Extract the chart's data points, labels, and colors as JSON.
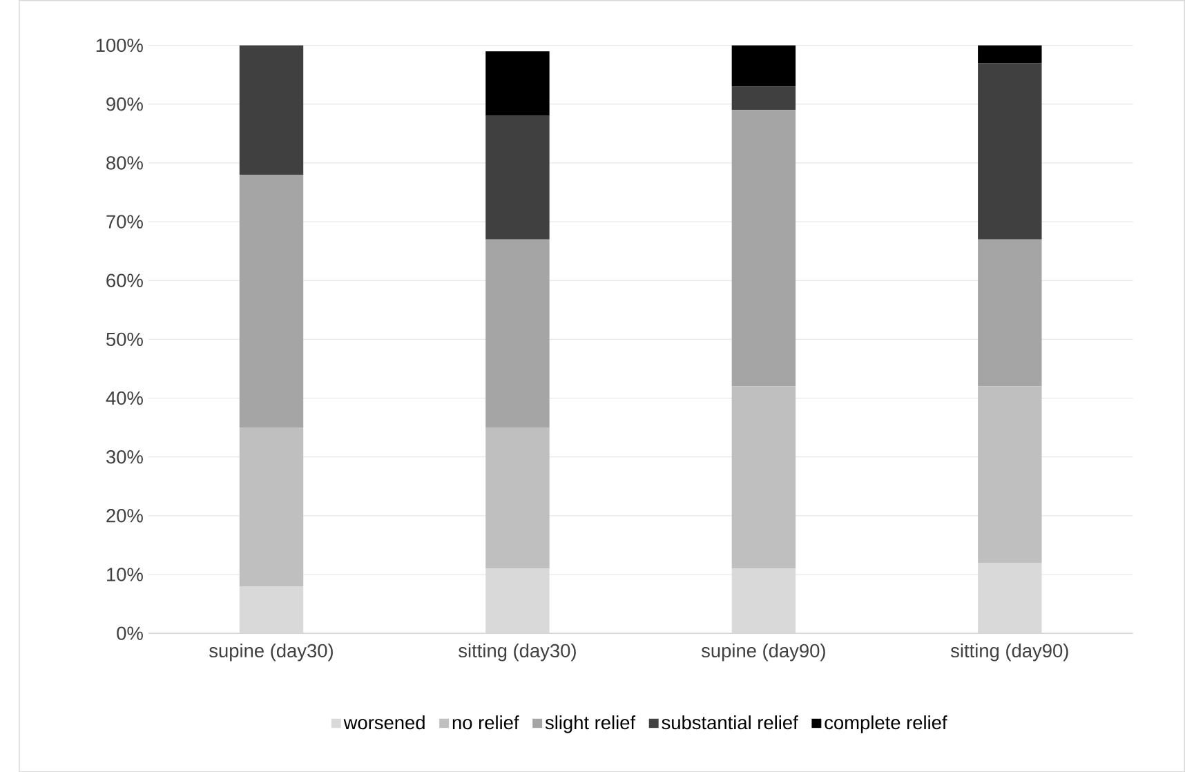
{
  "chart_data": {
    "type": "bar",
    "stacked": true,
    "categories": [
      "supine (day30)",
      "sitting (day30)",
      "supine (day90)",
      "sitting (day90)"
    ],
    "series": [
      {
        "name": "worsened",
        "color": "#d9d9d9",
        "values": [
          8,
          11,
          11,
          12
        ]
      },
      {
        "name": "no relief",
        "color": "#bfbfbf",
        "values": [
          27,
          24,
          31,
          30
        ]
      },
      {
        "name": "slight relief",
        "color": "#a5a5a5",
        "values": [
          43,
          32,
          47,
          25
        ]
      },
      {
        "name": "substantial relief",
        "color": "#404040",
        "values": [
          22,
          21,
          4,
          30
        ]
      },
      {
        "name": "complete relief",
        "color": "#000000",
        "values": [
          0,
          11,
          7,
          3
        ]
      }
    ],
    "ylim": [
      0,
      100
    ],
    "yticks": [
      {
        "value": 0,
        "label": "0%"
      },
      {
        "value": 10,
        "label": "10%"
      },
      {
        "value": 20,
        "label": "20%"
      },
      {
        "value": 30,
        "label": "30%"
      },
      {
        "value": 40,
        "label": "40%"
      },
      {
        "value": 50,
        "label": "50%"
      },
      {
        "value": 60,
        "label": "60%"
      },
      {
        "value": 70,
        "label": "70%"
      },
      {
        "value": 80,
        "label": "80%"
      },
      {
        "value": 90,
        "label": "90%"
      },
      {
        "value": 100,
        "label": "100%"
      }
    ],
    "grid": "y",
    "legend": "bottom"
  }
}
